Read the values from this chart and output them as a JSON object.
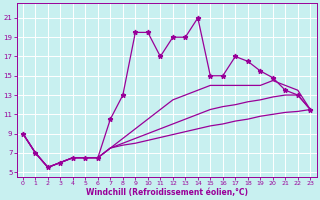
{
  "xlabel": "Windchill (Refroidissement éolien,°C)",
  "bg_color": "#c8f0f0",
  "line_color": "#990099",
  "grid_color": "#ffffff",
  "x_data": [
    0,
    1,
    2,
    3,
    4,
    5,
    6,
    7,
    8,
    9,
    10,
    11,
    12,
    13,
    14,
    15,
    16,
    17,
    18,
    19,
    20,
    21,
    22,
    23
  ],
  "main_line": [
    9.0,
    7.0,
    5.5,
    6.0,
    6.5,
    6.5,
    6.5,
    10.5,
    13.0,
    19.5,
    19.5,
    17.0,
    19.0,
    19.0,
    21.0,
    15.0,
    15.0,
    17.0,
    16.5,
    15.5,
    14.8,
    13.5,
    13.0,
    11.5
  ],
  "upper_line": [
    9.0,
    7.0,
    5.5,
    6.0,
    6.5,
    6.5,
    6.5,
    7.5,
    8.5,
    9.5,
    10.5,
    11.5,
    12.5,
    13.0,
    13.5,
    14.0,
    14.0,
    14.0,
    14.0,
    14.0,
    14.5,
    14.0,
    13.5,
    11.5
  ],
  "mid_line": [
    9.0,
    7.0,
    5.5,
    6.0,
    6.5,
    6.5,
    6.5,
    7.5,
    8.0,
    8.5,
    9.0,
    9.5,
    10.0,
    10.5,
    11.0,
    11.5,
    11.8,
    12.0,
    12.3,
    12.5,
    12.8,
    13.0,
    13.0,
    11.5
  ],
  "lower_line": [
    9.0,
    7.0,
    5.5,
    6.0,
    6.5,
    6.5,
    6.5,
    7.5,
    7.8,
    8.0,
    8.3,
    8.6,
    8.9,
    9.2,
    9.5,
    9.8,
    10.0,
    10.3,
    10.5,
    10.8,
    11.0,
    11.2,
    11.3,
    11.5
  ],
  "ylim": [
    4.5,
    22.5
  ],
  "xlim": [
    -0.5,
    23.5
  ],
  "yticks": [
    5,
    7,
    9,
    11,
    13,
    15,
    17,
    19,
    21
  ],
  "xticks": [
    0,
    1,
    2,
    3,
    4,
    5,
    6,
    7,
    8,
    9,
    10,
    11,
    12,
    13,
    14,
    15,
    16,
    17,
    18,
    19,
    20,
    21,
    22,
    23
  ]
}
